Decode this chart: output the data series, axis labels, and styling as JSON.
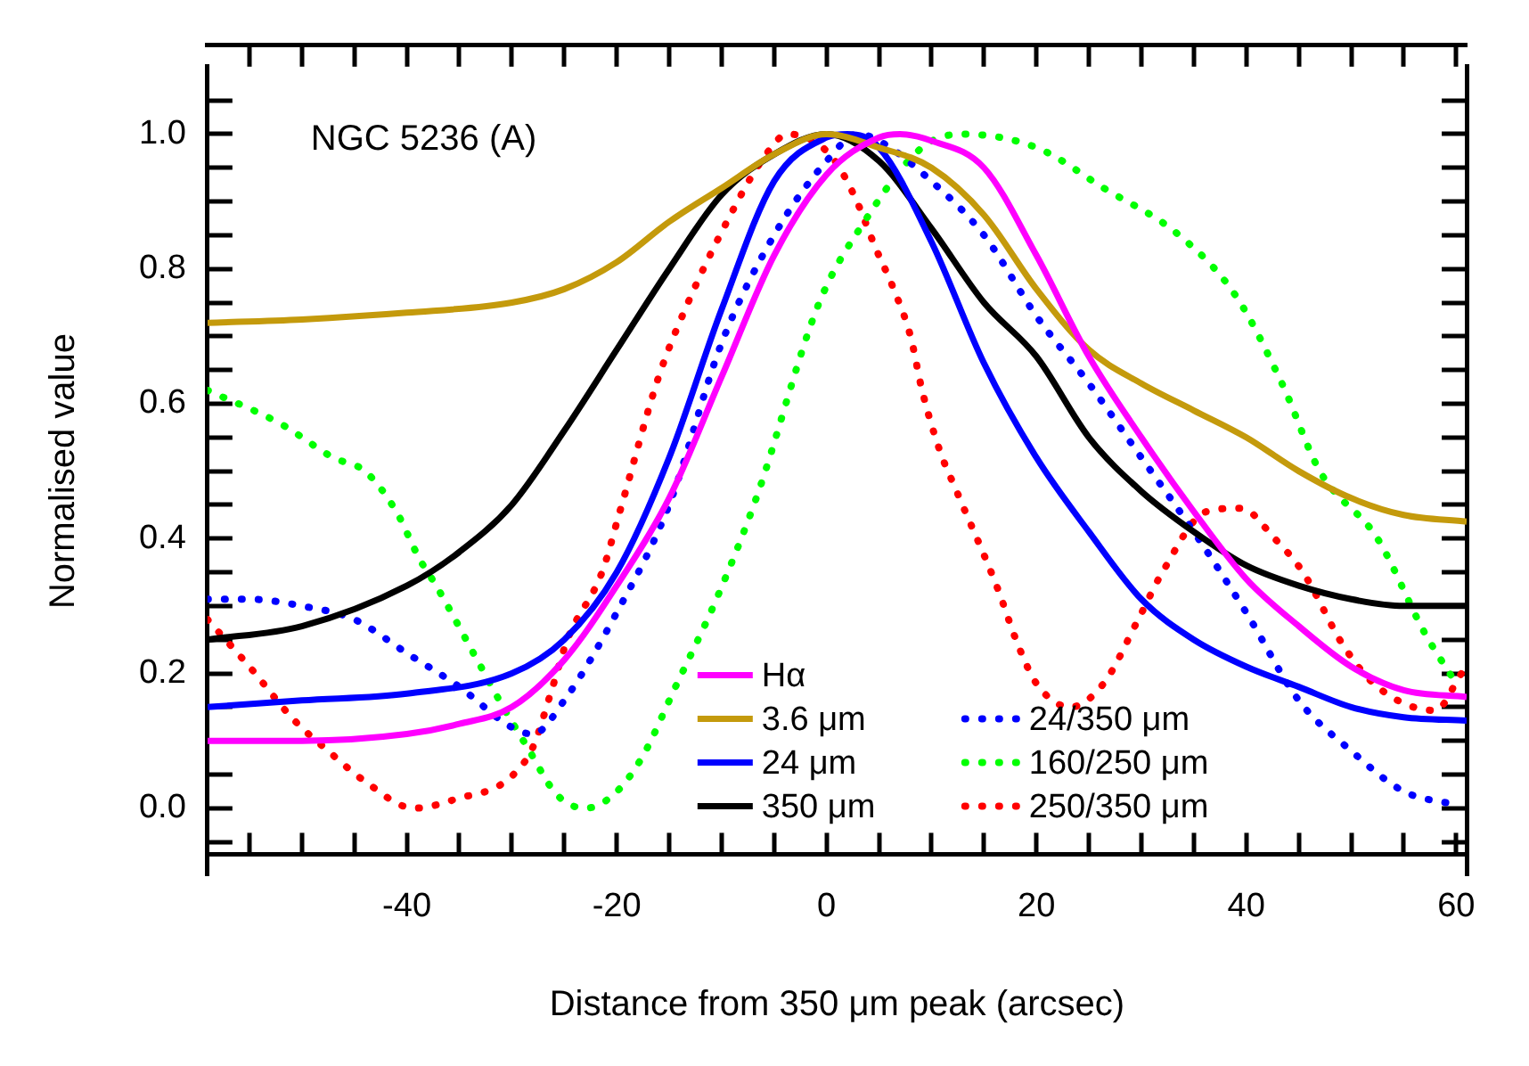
{
  "chart_data": {
    "type": "line",
    "xlabel": "Distance from 350 μm peak (arcsec)",
    "ylabel": "Normalised value",
    "annotations": [
      "NGC 5236 (A)"
    ],
    "xlim": [
      -59,
      61
    ],
    "ylim": [
      -0.1,
      1.1
    ],
    "xticks": [
      {
        "value": -55,
        "label": null
      },
      {
        "value": -50,
        "label": null
      },
      {
        "value": -45,
        "label": null
      },
      -40,
      {
        "value": -35,
        "label": null
      },
      {
        "value": -30,
        "label": null
      },
      {
        "value": -25,
        "label": null
      },
      -20,
      {
        "value": -15,
        "label": null
      },
      {
        "value": -10,
        "label": null
      },
      {
        "value": -5,
        "label": null
      },
      0,
      {
        "value": 5,
        "label": null
      },
      {
        "value": 10,
        "label": null
      },
      {
        "value": 15,
        "label": null
      },
      20,
      {
        "value": 25,
        "label": null
      },
      {
        "value": 30,
        "label": null
      },
      {
        "value": 35,
        "label": null
      },
      40,
      {
        "value": 45,
        "label": null
      },
      {
        "value": 50,
        "label": null
      },
      {
        "value": 55,
        "label": null
      },
      60
    ],
    "yticks": [
      {
        "value": -0.05,
        "label": null
      },
      {
        "value": 0,
        "label": "0.0"
      },
      {
        "value": 0.05,
        "label": null
      },
      {
        "value": 0.1,
        "label": null
      },
      {
        "value": 0.15,
        "label": null
      },
      {
        "value": 0.2,
        "label": "0.2"
      },
      {
        "value": 0.25,
        "label": null
      },
      {
        "value": 0.3,
        "label": null
      },
      {
        "value": 0.35,
        "label": null
      },
      {
        "value": 0.4,
        "label": "0.4"
      },
      {
        "value": 0.45,
        "label": null
      },
      {
        "value": 0.5,
        "label": null
      },
      {
        "value": 0.55,
        "label": null
      },
      {
        "value": 0.6,
        "label": "0.6"
      },
      {
        "value": 0.65,
        "label": null
      },
      {
        "value": 0.7,
        "label": null
      },
      {
        "value": 0.75,
        "label": null
      },
      {
        "value": 0.8,
        "label": "0.8"
      },
      {
        "value": 0.85,
        "label": null
      },
      {
        "value": 0.9,
        "label": null
      },
      {
        "value": 0.95,
        "label": null
      },
      {
        "value": 1,
        "label": "1.0"
      },
      {
        "value": 1.05,
        "label": null
      }
    ],
    "legend": "bottom",
    "marker": "none",
    "series": [
      {
        "name": "Hα",
        "color": "#ff00ff",
        "line_style": "solid",
        "x": [
          -59,
          -50,
          -40,
          -35,
          -30,
          -25,
          -20,
          -15,
          -10,
          -5,
          0,
          5,
          7,
          10,
          15,
          20,
          25,
          30,
          35,
          40,
          45,
          50,
          55,
          61
        ],
        "values": [
          0.1,
          0.1,
          0.11,
          0.125,
          0.15,
          0.22,
          0.33,
          0.46,
          0.64,
          0.82,
          0.94,
          0.995,
          1,
          0.99,
          0.95,
          0.82,
          0.67,
          0.55,
          0.44,
          0.34,
          0.27,
          0.21,
          0.175,
          0.165
        ]
      },
      {
        "name": "3.6 μm",
        "color": "#c49a0c",
        "line_style": "solid",
        "x": [
          -59,
          -50,
          -40,
          -30,
          -25,
          -20,
          -15,
          -10,
          -5,
          0,
          5,
          10,
          15,
          20,
          25,
          30,
          35,
          40,
          45,
          50,
          55,
          61
        ],
        "values": [
          0.72,
          0.725,
          0.735,
          0.75,
          0.77,
          0.81,
          0.87,
          0.92,
          0.97,
          1,
          0.98,
          0.95,
          0.88,
          0.77,
          0.68,
          0.63,
          0.59,
          0.55,
          0.5,
          0.46,
          0.435,
          0.425
        ]
      },
      {
        "name": "24 μm",
        "color": "#0000ff",
        "line_style": "solid",
        "x": [
          -59,
          -50,
          -40,
          -30,
          -25,
          -20,
          -15,
          -10,
          -5,
          0,
          2,
          5,
          10,
          15,
          20,
          25,
          30,
          35,
          40,
          45,
          50,
          55,
          61
        ],
        "values": [
          0.15,
          0.16,
          0.17,
          0.2,
          0.25,
          0.35,
          0.52,
          0.74,
          0.93,
          0.995,
          1,
          0.98,
          0.84,
          0.66,
          0.52,
          0.41,
          0.31,
          0.25,
          0.21,
          0.18,
          0.15,
          0.135,
          0.13
        ]
      },
      {
        "name": "350 μm",
        "color": "#000000",
        "line_style": "solid",
        "x": [
          -59,
          -50,
          -40,
          -35,
          -30,
          -25,
          -20,
          -15,
          -10,
          -5,
          0,
          5,
          10,
          15,
          20,
          25,
          30,
          35,
          40,
          45,
          50,
          55,
          61
        ],
        "values": [
          0.25,
          0.27,
          0.33,
          0.38,
          0.45,
          0.56,
          0.68,
          0.8,
          0.91,
          0.97,
          1,
          0.96,
          0.86,
          0.75,
          0.67,
          0.55,
          0.47,
          0.41,
          0.36,
          0.33,
          0.31,
          0.3,
          0.3
        ]
      },
      {
        "name": "24/350 μm",
        "color": "#0000ff",
        "line_style": "dotted",
        "x": [
          -59,
          -55,
          -50,
          -45,
          -40,
          -35,
          -30,
          -28,
          -25,
          -20,
          -15,
          -10,
          -5,
          0,
          3,
          5,
          10,
          15,
          20,
          25,
          30,
          35,
          40,
          45,
          50,
          55,
          60
        ],
        "values": [
          0.31,
          0.31,
          0.3,
          0.28,
          0.23,
          0.18,
          0.12,
          0.11,
          0.16,
          0.29,
          0.45,
          0.69,
          0.85,
          0.96,
          1,
          0.99,
          0.93,
          0.85,
          0.73,
          0.63,
          0.52,
          0.41,
          0.29,
          0.16,
          0.085,
          0.025,
          0.005
        ]
      },
      {
        "name": "160/250 μm",
        "color": "#00ff00",
        "line_style": "dotted",
        "x": [
          -59,
          -52,
          -47,
          -44,
          -41,
          -38.8,
          -37.2,
          -33.3,
          -31,
          -28.5,
          -25.7,
          -23,
          -20.3,
          -17.6,
          -14.4,
          -10.5,
          -6.7,
          -0.7,
          3.6,
          9.1,
          12.9,
          20,
          26.4,
          33.6,
          39,
          43.4,
          47,
          52.5,
          57,
          60
        ],
        "values": [
          0.62,
          0.57,
          0.52,
          0.5,
          0.44,
          0.37,
          0.33,
          0.22,
          0.155,
          0.09,
          0.02,
          0,
          0.02,
          0.075,
          0.18,
          0.31,
          0.46,
          0.75,
          0.87,
          0.98,
          1,
          0.98,
          0.92,
          0.85,
          0.76,
          0.63,
          0.5,
          0.4,
          0.26,
          0.185
        ]
      },
      {
        "name": "250/350 μm",
        "color": "#ff0000",
        "line_style": "dotted",
        "x": [
          -59,
          -55,
          -50.7,
          -47.5,
          -44,
          -39.3,
          -35,
          -30.6,
          -28,
          -26.3,
          -24.7,
          -21.4,
          -19.7,
          -16,
          -13.2,
          -9.5,
          -6.2,
          -3.7,
          0.3,
          2.6,
          4.7,
          6.4,
          8,
          9.1,
          10.8,
          12.4,
          16.2,
          18.3,
          20,
          23.2,
          26.4,
          29.7,
          32,
          36.2,
          39.5,
          42.7,
          45.4,
          49.3,
          52.5,
          58,
          60.5
        ],
        "values": [
          0.28,
          0.21,
          0.13,
          0.085,
          0.04,
          0,
          0.015,
          0.04,
          0.09,
          0.17,
          0.25,
          0.35,
          0.44,
          0.64,
          0.75,
          0.87,
          0.96,
          1,
          0.97,
          0.91,
          0.83,
          0.77,
          0.7,
          0.62,
          0.53,
          0.47,
          0.33,
          0.24,
          0.185,
          0.15,
          0.185,
          0.28,
          0.35,
          0.44,
          0.445,
          0.4,
          0.35,
          0.24,
          0.18,
          0.145,
          0.2
        ]
      }
    ]
  }
}
